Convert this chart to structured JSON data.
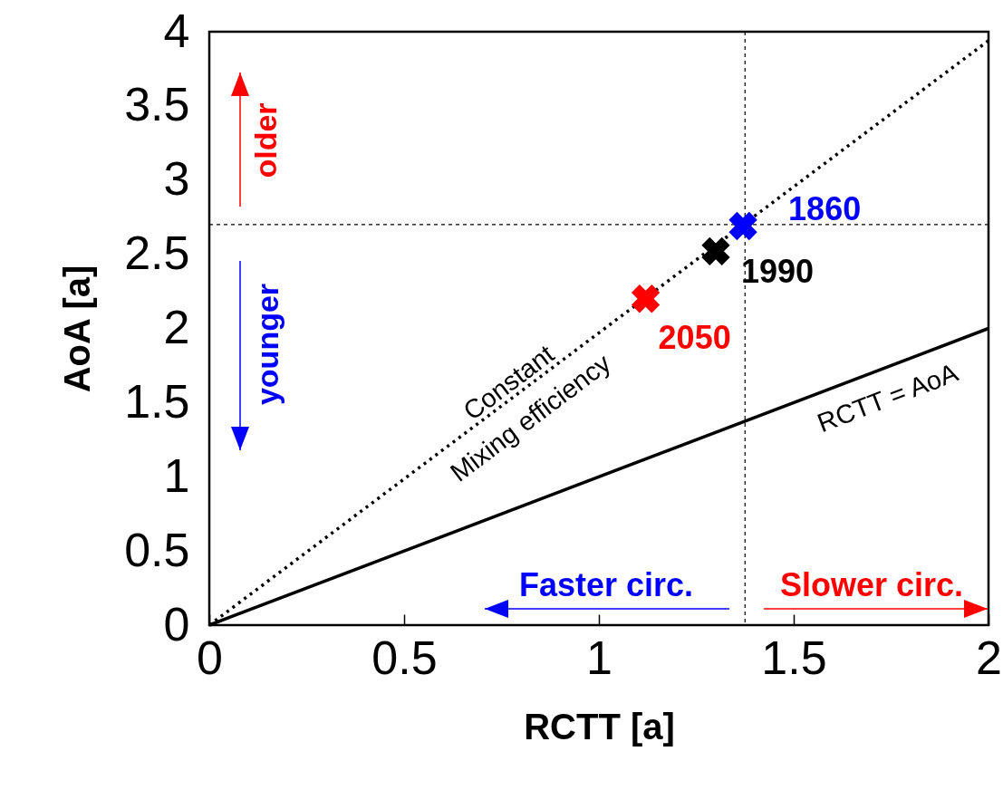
{
  "chart_data": {
    "type": "scatter",
    "xlabel": "RCTT [a]",
    "ylabel": "AoA [a]",
    "xlim": [
      0,
      2
    ],
    "ylim": [
      0,
      4
    ],
    "xticks": [
      0,
      0.5,
      1,
      1.5,
      2
    ],
    "yticks": [
      0,
      0.5,
      1,
      1.5,
      2,
      2.5,
      3,
      3.5,
      4
    ],
    "grid": false,
    "series": [
      {
        "type": "line",
        "x": [
          0,
          2
        ],
        "values": [
          0,
          3.94
        ],
        "color": "#000000",
        "line_style": "dotted",
        "marker": "none"
      },
      {
        "type": "line",
        "x": [
          0,
          2
        ],
        "values": [
          0,
          2
        ],
        "color": "#000000",
        "line_style": "solid",
        "marker": "none"
      },
      {
        "name": "1860",
        "x": [
          1.37
        ],
        "values": [
          2.69
        ],
        "color": "#0000ff",
        "marker": "cross"
      },
      {
        "name": "1990",
        "x": [
          1.3
        ],
        "values": [
          2.52
        ],
        "color": "#000000",
        "marker": "cross"
      },
      {
        "name": "2050",
        "x": [
          1.12
        ],
        "values": [
          2.2
        ],
        "color": "#ff0000",
        "marker": "cross"
      }
    ],
    "ref_lines": [
      {
        "axis": "x",
        "value": 1.375,
        "line_style": "dashed",
        "color": "#000000"
      },
      {
        "axis": "y",
        "value": 2.7,
        "line_style": "dashed",
        "color": "#000000"
      }
    ],
    "annotations": [
      "older",
      "younger",
      "Faster circ.",
      "Slower circ.",
      "Constant",
      "Mixing efficiency",
      "RCTT = AoA"
    ]
  }
}
